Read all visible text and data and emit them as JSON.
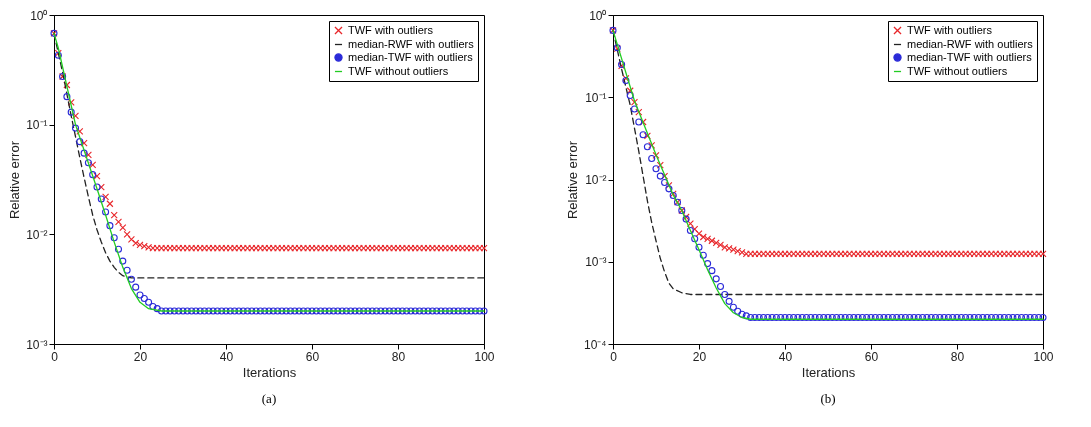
{
  "chart_data": [
    {
      "type": "line",
      "xlabel": "Iterations",
      "ylabel": "Relative error",
      "annotations": [
        "(a)"
      ],
      "log": "y",
      "grid": false,
      "legend": "top right",
      "xlim": [
        0,
        100
      ],
      "xticks": [
        0,
        20,
        40,
        60,
        80,
        100
      ],
      "ylim": [
        0.001,
        1
      ],
      "yticks": [
        {
          "value": 0.001,
          "label": "10⁻³"
        },
        {
          "value": 0.01,
          "label": "10⁻²"
        },
        {
          "value": 0.1,
          "label": "10⁻¹"
        },
        {
          "value": 1,
          "label": "10⁰"
        }
      ],
      "x": [
        0,
        1,
        2,
        3,
        4,
        5,
        6,
        7,
        8,
        9,
        10,
        11,
        12,
        13,
        14,
        15,
        16,
        17,
        18,
        19,
        20,
        21,
        22,
        23,
        24,
        25,
        26,
        27,
        28,
        29,
        30,
        31,
        32,
        33,
        34,
        35,
        36,
        37,
        38,
        39,
        40,
        41,
        42,
        43,
        44,
        45,
        46,
        47,
        48,
        49,
        50,
        51,
        52,
        53,
        54,
        55,
        56,
        57,
        58,
        59,
        60,
        61,
        62,
        63,
        64,
        65,
        66,
        67,
        68,
        69,
        70,
        71,
        72,
        73,
        74,
        75,
        76,
        77,
        78,
        79,
        80,
        81,
        82,
        83,
        84,
        85,
        86,
        87,
        88,
        89,
        90,
        91,
        92,
        93,
        94,
        95,
        96,
        97,
        98,
        99,
        100
      ],
      "series": [
        {
          "name": "TWF with outliers",
          "type": "scatter",
          "marker": "cross",
          "color": "#e8262a",
          "values": [
            0.68,
            0.45,
            0.275,
            0.23,
            0.16,
            0.12,
            0.087,
            0.068,
            0.053,
            0.043,
            0.034,
            0.027,
            0.022,
            0.019,
            0.015,
            0.013,
            0.0115,
            0.01,
            0.009,
            0.0083,
            0.008,
            0.0078,
            0.0076,
            0.0075,
            0.0075,
            0.0075,
            0.0075,
            0.0075,
            0.0075,
            0.0075,
            0.0075,
            0.0075,
            0.0075,
            0.0075,
            0.0075,
            0.0075,
            0.0075,
            0.0075,
            0.0075,
            0.0075,
            0.0075,
            0.0075,
            0.0075,
            0.0075,
            0.0075,
            0.0075,
            0.0075,
            0.0075,
            0.0075,
            0.0075,
            0.0075,
            0.0075,
            0.0075,
            0.0075,
            0.0075,
            0.0075,
            0.0075,
            0.0075,
            0.0075,
            0.0075,
            0.0075,
            0.0075,
            0.0075,
            0.0075,
            0.0075,
            0.0075,
            0.0075,
            0.0075,
            0.0075,
            0.0075,
            0.0075,
            0.0075,
            0.0075,
            0.0075,
            0.0075,
            0.0075,
            0.0075,
            0.0075,
            0.0075,
            0.0075,
            0.0075,
            0.0075,
            0.0075,
            0.0075,
            0.0075,
            0.0075,
            0.0075,
            0.0075,
            0.0075,
            0.0075,
            0.0075,
            0.0075,
            0.0075,
            0.0075,
            0.0075,
            0.0075,
            0.0075,
            0.0075,
            0.0075,
            0.0075,
            0.0075
          ]
        },
        {
          "name": "median-RWF with outliers",
          "line_style": "dashed",
          "color": "#222222",
          "x": [
            0,
            1,
            2,
            3,
            4,
            5,
            6,
            7,
            8,
            9,
            10,
            11,
            12,
            13,
            14,
            15,
            16,
            18,
            100
          ],
          "values": [
            0.68,
            0.45,
            0.3,
            0.19,
            0.12,
            0.078,
            0.05,
            0.033,
            0.022,
            0.015,
            0.011,
            0.0085,
            0.0068,
            0.0057,
            0.005,
            0.0045,
            0.0042,
            0.004,
            0.004
          ]
        },
        {
          "name": "median-TWF with outliers",
          "type": "scatter",
          "marker": "circle",
          "color": "#2a2ad8",
          "values": [
            0.68,
            0.43,
            0.275,
            0.18,
            0.13,
            0.093,
            0.07,
            0.055,
            0.045,
            0.035,
            0.027,
            0.021,
            0.016,
            0.012,
            0.0093,
            0.0073,
            0.0057,
            0.0047,
            0.0039,
            0.0033,
            0.0028,
            0.0026,
            0.0024,
            0.0022,
            0.0021,
            0.002,
            0.002,
            0.002,
            0.002,
            0.002,
            0.002,
            0.002,
            0.002,
            0.002,
            0.002,
            0.002,
            0.002,
            0.002,
            0.002,
            0.002,
            0.002,
            0.002,
            0.002,
            0.002,
            0.002,
            0.002,
            0.002,
            0.002,
            0.002,
            0.002,
            0.002,
            0.002,
            0.002,
            0.002,
            0.002,
            0.002,
            0.002,
            0.002,
            0.002,
            0.002,
            0.002,
            0.002,
            0.002,
            0.002,
            0.002,
            0.002,
            0.002,
            0.002,
            0.002,
            0.002,
            0.002,
            0.002,
            0.002,
            0.002,
            0.002,
            0.002,
            0.002,
            0.002,
            0.002,
            0.002,
            0.002,
            0.002,
            0.002,
            0.002,
            0.002,
            0.002,
            0.002,
            0.002,
            0.002,
            0.002,
            0.002,
            0.002,
            0.002,
            0.002,
            0.002,
            0.002,
            0.002,
            0.002,
            0.002,
            0.002,
            0.002
          ]
        },
        {
          "name": "TWF without outliers",
          "color": "#22cc22",
          "x": [
            0,
            1,
            5,
            10,
            12,
            14,
            16,
            18,
            20,
            22,
            25,
            100
          ],
          "values": [
            0.68,
            0.5,
            0.1,
            0.026,
            0.015,
            0.0085,
            0.005,
            0.0032,
            0.0024,
            0.0021,
            0.002,
            0.002
          ]
        }
      ]
    },
    {
      "type": "line",
      "xlabel": "Iterations",
      "ylabel": "Relative error",
      "annotations": [
        "(b)"
      ],
      "log": "y",
      "grid": false,
      "legend": "top right",
      "xlim": [
        0,
        100
      ],
      "xticks": [
        0,
        20,
        40,
        60,
        80,
        100
      ],
      "ylim": [
        0.0001,
        1
      ],
      "yticks": [
        {
          "value": 0.0001,
          "label": "10⁻⁴"
        },
        {
          "value": 0.001,
          "label": "10⁻³"
        },
        {
          "value": 0.01,
          "label": "10⁻²"
        },
        {
          "value": 0.1,
          "label": "10⁻¹"
        },
        {
          "value": 1,
          "label": "10⁰"
        }
      ],
      "x": [
        0,
        1,
        2,
        3,
        4,
        5,
        6,
        7,
        8,
        9,
        10,
        11,
        12,
        13,
        14,
        15,
        16,
        17,
        18,
        19,
        20,
        21,
        22,
        23,
        24,
        25,
        26,
        27,
        28,
        29,
        30,
        31,
        32,
        33,
        34,
        35,
        36,
        37,
        38,
        39,
        40,
        41,
        42,
        43,
        44,
        45,
        46,
        47,
        48,
        49,
        50,
        51,
        52,
        53,
        54,
        55,
        56,
        57,
        58,
        59,
        60,
        61,
        62,
        63,
        64,
        65,
        66,
        67,
        68,
        69,
        70,
        71,
        72,
        73,
        74,
        75,
        76,
        77,
        78,
        79,
        80,
        81,
        82,
        83,
        84,
        85,
        86,
        87,
        88,
        89,
        90,
        91,
        92,
        93,
        94,
        95,
        96,
        97,
        98,
        99,
        100
      ],
      "series": [
        {
          "name": "TWF with outliers",
          "type": "scatter",
          "marker": "cross",
          "color": "#e8262a",
          "values": [
            0.65,
            0.39,
            0.24,
            0.17,
            0.12,
            0.087,
            0.066,
            0.05,
            0.034,
            0.026,
            0.0196,
            0.015,
            0.011,
            0.0085,
            0.0067,
            0.0053,
            0.0042,
            0.0035,
            0.0029,
            0.0025,
            0.0022,
            0.002,
            0.0019,
            0.0018,
            0.0017,
            0.0016,
            0.0015,
            0.00145,
            0.0014,
            0.00135,
            0.0013,
            0.00125,
            0.00125,
            0.00125,
            0.00125,
            0.00125,
            0.00125,
            0.00125,
            0.00125,
            0.00125,
            0.00125,
            0.00125,
            0.00125,
            0.00125,
            0.00125,
            0.00125,
            0.00125,
            0.00125,
            0.00125,
            0.00125,
            0.00125,
            0.00125,
            0.00125,
            0.00125,
            0.00125,
            0.00125,
            0.00125,
            0.00125,
            0.00125,
            0.00125,
            0.00125,
            0.00125,
            0.00125,
            0.00125,
            0.00125,
            0.00125,
            0.00125,
            0.00125,
            0.00125,
            0.00125,
            0.00125,
            0.00125,
            0.00125,
            0.00125,
            0.00125,
            0.00125,
            0.00125,
            0.00125,
            0.00125,
            0.00125,
            0.00125,
            0.00125,
            0.00125,
            0.00125,
            0.00125,
            0.00125,
            0.00125,
            0.00125,
            0.00125,
            0.00125,
            0.00125,
            0.00125,
            0.00125,
            0.00125,
            0.00125,
            0.00125,
            0.00125,
            0.00125,
            0.00125,
            0.00125,
            0.00125
          ]
        },
        {
          "name": "median-RWF with outliers",
          "line_style": "dashed",
          "color": "#222222",
          "x": [
            0,
            2,
            4,
            6,
            7,
            8,
            9,
            10,
            11,
            12,
            13,
            14,
            16,
            18,
            100
          ],
          "values": [
            0.65,
            0.22,
            0.08,
            0.022,
            0.011,
            0.0055,
            0.003,
            0.0018,
            0.0011,
            0.00075,
            0.00055,
            0.00047,
            0.00042,
            0.0004,
            0.0004
          ]
        },
        {
          "name": "median-TWF with outliers",
          "type": "scatter",
          "marker": "circle",
          "color": "#2a2ad8",
          "values": [
            0.65,
            0.4,
            0.25,
            0.16,
            0.105,
            0.072,
            0.05,
            0.035,
            0.025,
            0.018,
            0.0135,
            0.011,
            0.0092,
            0.0077,
            0.0064,
            0.0053,
            0.0042,
            0.0033,
            0.0024,
            0.0019,
            0.0015,
            0.0012,
            0.00095,
            0.00078,
            0.00062,
            0.0005,
            0.0004,
            0.00033,
            0.00028,
            0.00025,
            0.00023,
            0.00022,
            0.00021,
            0.00021,
            0.00021,
            0.00021,
            0.00021,
            0.00021,
            0.00021,
            0.00021,
            0.00021,
            0.00021,
            0.00021,
            0.00021,
            0.00021,
            0.00021,
            0.00021,
            0.00021,
            0.00021,
            0.00021,
            0.00021,
            0.00021,
            0.00021,
            0.00021,
            0.00021,
            0.00021,
            0.00021,
            0.00021,
            0.00021,
            0.00021,
            0.00021,
            0.00021,
            0.00021,
            0.00021,
            0.00021,
            0.00021,
            0.00021,
            0.00021,
            0.00021,
            0.00021,
            0.00021,
            0.00021,
            0.00021,
            0.00021,
            0.00021,
            0.00021,
            0.00021,
            0.00021,
            0.00021,
            0.00021,
            0.00021,
            0.00021,
            0.00021,
            0.00021,
            0.00021,
            0.00021,
            0.00021,
            0.00021,
            0.00021,
            0.00021,
            0.00021,
            0.00021,
            0.00021,
            0.00021,
            0.00021,
            0.00021,
            0.00021,
            0.00021,
            0.00021,
            0.00021,
            0.00021
          ]
        },
        {
          "name": "TWF without outliers",
          "color": "#22cc22",
          "x": [
            0,
            5,
            10,
            14,
            16,
            18,
            20,
            22,
            24,
            26,
            28,
            30,
            32,
            100
          ],
          "values": [
            0.65,
            0.09,
            0.02,
            0.0065,
            0.0042,
            0.0024,
            0.0014,
            0.0008,
            0.00048,
            0.00031,
            0.00024,
            0.00021,
            0.0002,
            0.0002
          ]
        }
      ]
    }
  ]
}
